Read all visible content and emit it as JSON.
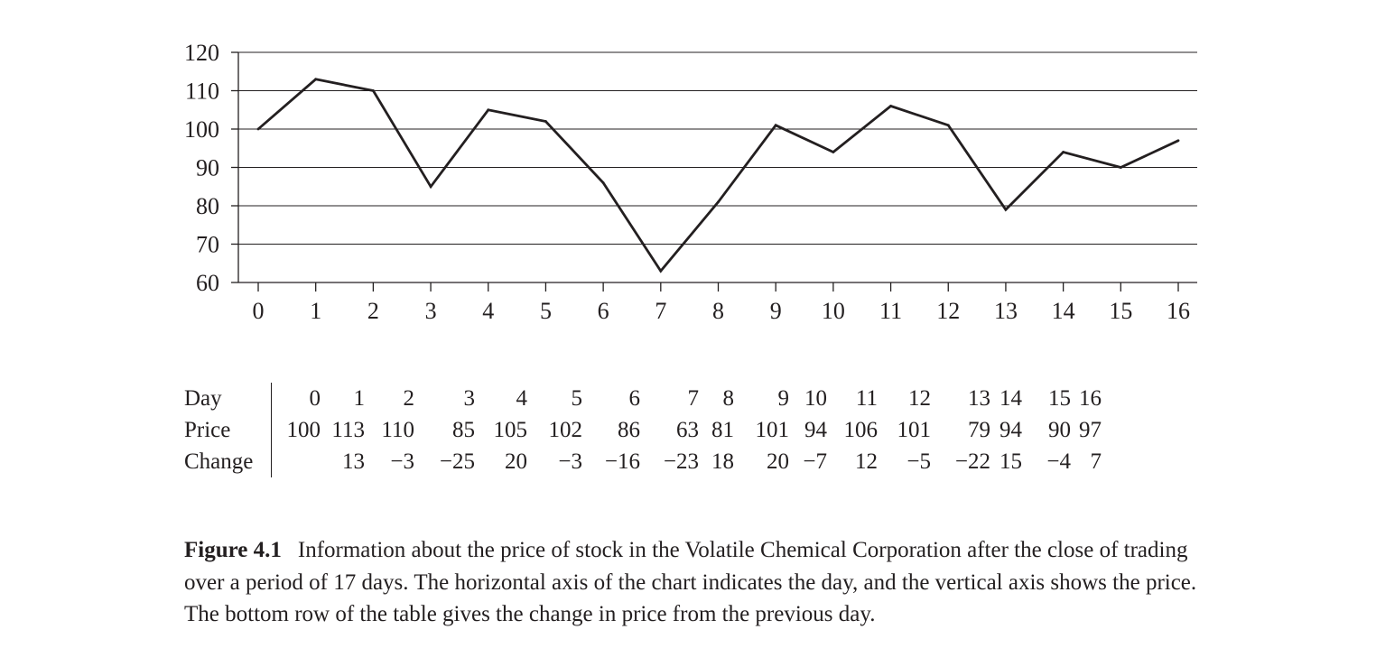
{
  "chart_data": {
    "type": "line",
    "x": [
      0,
      1,
      2,
      3,
      4,
      5,
      6,
      7,
      8,
      9,
      10,
      11,
      12,
      13,
      14,
      15,
      16
    ],
    "series": [
      {
        "values": [
          100,
          113,
          110,
          85,
          105,
          102,
          86,
          63,
          81,
          101,
          94,
          106,
          101,
          79,
          94,
          90,
          97
        ]
      }
    ],
    "title": "",
    "xlabel": "",
    "ylabel": "",
    "ylim": [
      60,
      120
    ],
    "yticks": [
      60,
      70,
      80,
      90,
      100,
      110,
      120
    ],
    "xticks": [
      0,
      1,
      2,
      3,
      4,
      5,
      6,
      7,
      8,
      9,
      10,
      11,
      12,
      13,
      14,
      15,
      16
    ],
    "grid": "horizontal",
    "line_color": "#231f20"
  },
  "table": {
    "rows": [
      {
        "label": "Day",
        "cells": [
          "0",
          "1",
          "2",
          "3",
          "4",
          "5",
          "6",
          "7",
          "8",
          "9",
          "10",
          "11",
          "12",
          "13",
          "14",
          "15",
          "16"
        ]
      },
      {
        "label": "Price",
        "cells": [
          "100",
          "113",
          "110",
          "85",
          "105",
          "102",
          "86",
          "63",
          "81",
          "101",
          "94",
          "106",
          "101",
          "79",
          "94",
          "90",
          "97"
        ]
      },
      {
        "label": "Change",
        "cells": [
          "",
          "13",
          "−3",
          "−25",
          "20",
          "−3",
          "−16",
          "−23",
          "18",
          "20",
          "−7",
          "12",
          "−5",
          "−22",
          "15",
          "−4",
          "7"
        ]
      }
    ]
  },
  "caption": {
    "label": "Figure 4.1",
    "text": "Information about the price of stock in the Volatile Chemical Corporation after the close of trading over a period of 17 days. The horizontal axis of the chart indicates the day, and the vertical axis shows the price. The bottom row of the table gives the change in price from the previous day."
  }
}
